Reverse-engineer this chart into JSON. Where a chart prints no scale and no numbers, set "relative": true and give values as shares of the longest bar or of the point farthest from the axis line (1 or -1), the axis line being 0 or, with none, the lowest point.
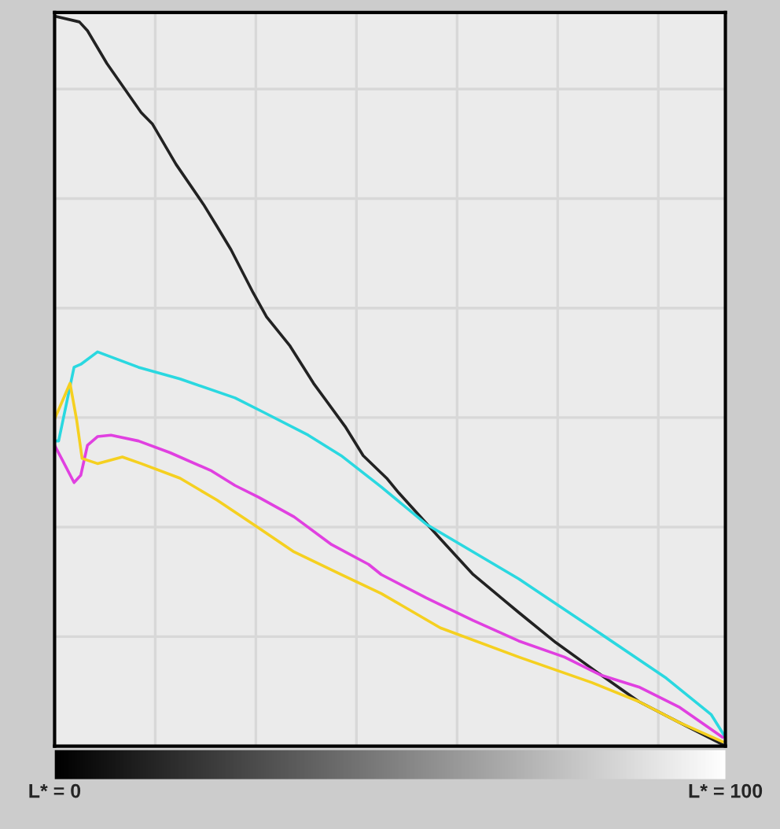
{
  "chart_data": {
    "type": "line",
    "relative": true,
    "grid": true,
    "marker": "none",
    "line_style": "solid",
    "xlim": [
      0,
      100
    ],
    "xticks": [
      {
        "value": 0,
        "label": "L* = 0"
      },
      {
        "value": 100,
        "label": "L* = 100"
      }
    ],
    "series": [
      {
        "color": "#222222",
        "x": [
          0,
          3.7,
          4.9,
          7.8,
          12.9,
          14.6,
          18.1,
          22.2,
          24.2,
          26.3,
          29.6,
          31.6,
          35.1,
          38.6,
          43.3,
          46.0,
          49.5,
          51.3,
          57.5,
          62.4,
          69.2,
          74.7,
          80.9,
          87.1,
          93.2,
          99.6
        ],
        "values": [
          1.0,
          0.992,
          0.98,
          0.935,
          0.868,
          0.852,
          0.797,
          0.742,
          0.712,
          0.68,
          0.621,
          0.588,
          0.548,
          0.497,
          0.438,
          0.398,
          0.367,
          0.347,
          0.284,
          0.235,
          0.183,
          0.142,
          0.101,
          0.061,
          0.032,
          0.002
        ]
      },
      {
        "color": "#2ad8e0",
        "x": [
          0,
          0.6,
          2.9,
          3.9,
          6.4,
          12.5,
          18.7,
          26.9,
          31.0,
          37.8,
          42.7,
          48.7,
          55.4,
          62.4,
          69.2,
          80.1,
          91.2,
          97.9,
          100
        ],
        "values": [
          0.418,
          0.418,
          0.519,
          0.523,
          0.54,
          0.519,
          0.503,
          0.477,
          0.458,
          0.426,
          0.398,
          0.355,
          0.304,
          0.266,
          0.229,
          0.162,
          0.093,
          0.043,
          0.012
        ]
      },
      {
        "color": "#e040e0",
        "x": [
          0,
          1.2,
          2.9,
          3.9,
          4.9,
          6.4,
          8.4,
          12.5,
          17.2,
          23.4,
          26.9,
          30.4,
          35.7,
          41.3,
          46.8,
          48.7,
          55.4,
          62.4,
          69.2,
          76.0,
          81.5,
          87.1,
          93.2,
          99.6
        ],
        "values": [
          0.412,
          0.391,
          0.361,
          0.371,
          0.412,
          0.424,
          0.426,
          0.418,
          0.402,
          0.377,
          0.357,
          0.341,
          0.314,
          0.276,
          0.249,
          0.235,
          0.203,
          0.172,
          0.144,
          0.122,
          0.097,
          0.081,
          0.053,
          0.012
        ]
      },
      {
        "color": "#f5d020",
        "x": [
          0,
          2.3,
          3.3,
          4.1,
          6.4,
          10.1,
          12.9,
          18.7,
          24.2,
          29.6,
          35.7,
          42.7,
          48.7,
          57.5,
          69.2,
          80.1,
          87.1,
          93.2,
          99.6
        ],
        "values": [
          0.448,
          0.497,
          0.446,
          0.394,
          0.387,
          0.396,
          0.387,
          0.367,
          0.337,
          0.304,
          0.266,
          0.235,
          0.209,
          0.162,
          0.122,
          0.087,
          0.061,
          0.032,
          0.006
        ]
      }
    ]
  }
}
